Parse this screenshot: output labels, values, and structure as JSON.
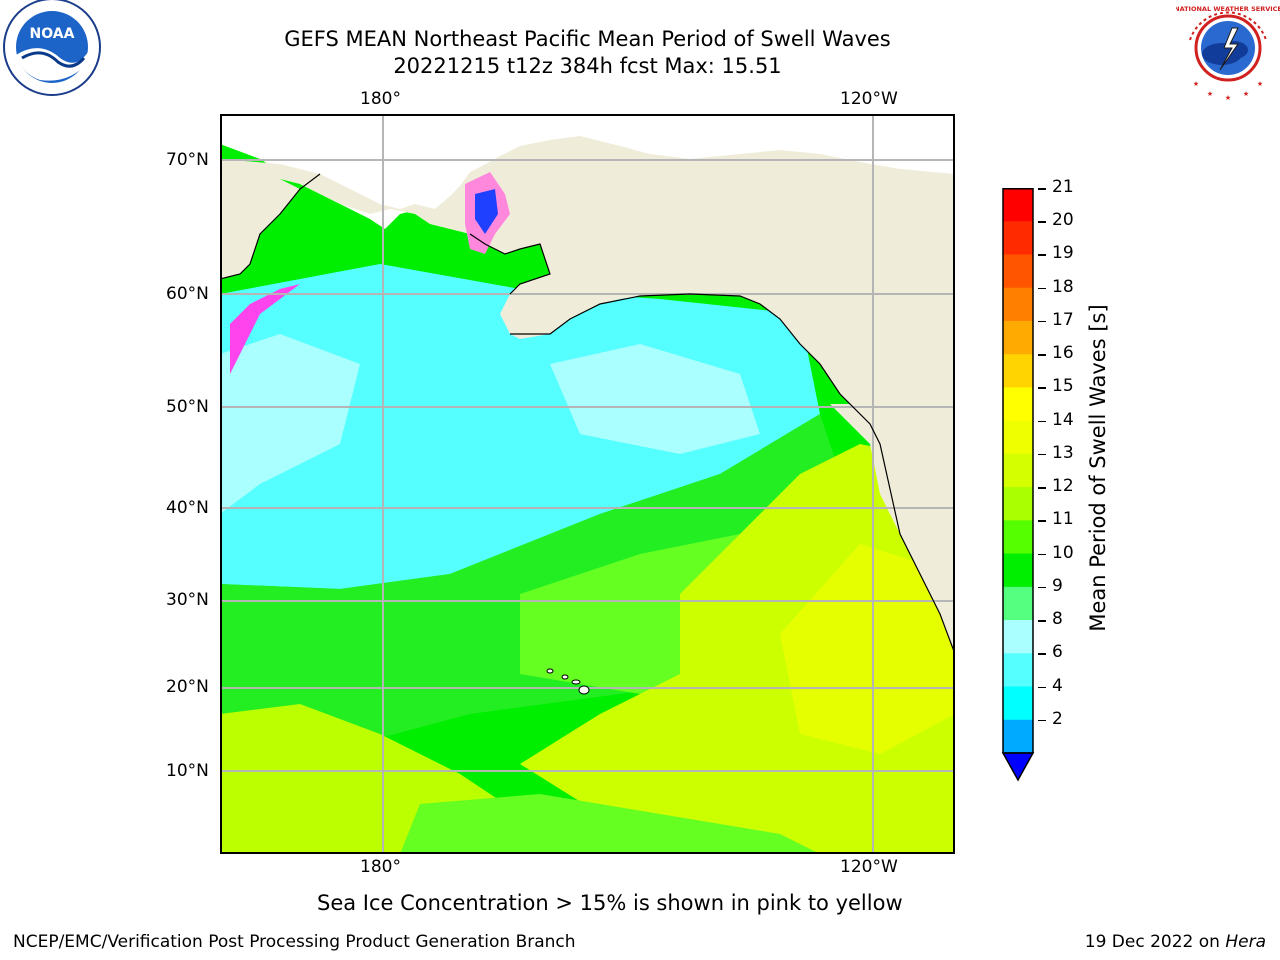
{
  "title": {
    "line1": "GEFS MEAN Northeast Pacific Mean Period of Swell Waves",
    "line2": "20221215 t12z 384h fcst   Max: 15.51"
  },
  "logos": {
    "left": {
      "icon": "noaa-logo-icon",
      "text": "NOAA"
    },
    "right": {
      "icon": "nws-logo-icon",
      "text": "NATIONAL WEATHER SERVICE"
    }
  },
  "map": {
    "lon_labels_top": [
      "180°",
      "120°W"
    ],
    "lon_labels_bottom": [
      "180°",
      "120°W"
    ],
    "lat_labels": [
      "70°N",
      "60°N",
      "50°N",
      "40°N",
      "30°N",
      "20°N",
      "10°N"
    ],
    "colors": {
      "land": "#efedd9",
      "grid": "#b5b5b5"
    }
  },
  "colorbar": {
    "label": "Mean Period of Swell Waves [s]",
    "ticks": [
      "21",
      "20",
      "19",
      "18",
      "17",
      "16",
      "15",
      "14",
      "13",
      "12",
      "11",
      "10",
      "9",
      "8",
      "6",
      "4",
      "2"
    ],
    "colors_top_to_bottom": [
      "#ff0000",
      "#ff2a00",
      "#ff5500",
      "#ff7f00",
      "#ffaa00",
      "#ffd400",
      "#ffff00",
      "#f0ff00",
      "#d4ff00",
      "#aaff00",
      "#55ff00",
      "#00ee00",
      "#55ff7f",
      "#aaffff",
      "#55ffff",
      "#00ffff",
      "#00aaff"
    ],
    "under_color": "#0000ff"
  },
  "note": "Sea Ice Concentration > 15% is shown in pink to yellow",
  "footer": {
    "left": "NCEP/EMC/Verification Post Processing Product Generation Branch",
    "right_prefix": "19 Dec 2022 on ",
    "right_machine": "Hera"
  }
}
